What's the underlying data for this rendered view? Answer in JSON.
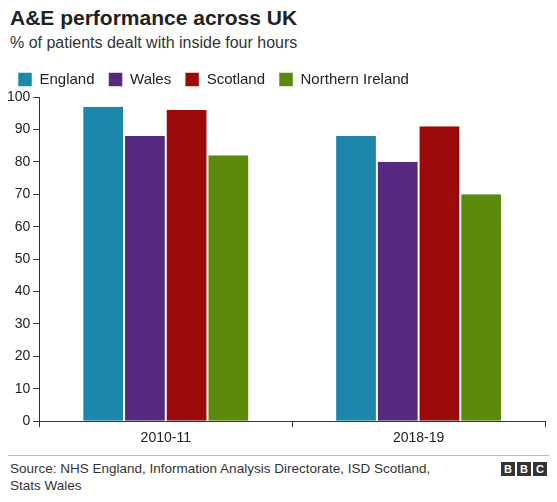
{
  "chart_data": {
    "type": "bar",
    "title": "A&E performance across UK",
    "subtitle": "% of patients dealt with inside four hours",
    "source": "Source: NHS England, Information Analysis Directorate, ISD Scotland, Stats Wales",
    "credit": "BBC",
    "categories": [
      "2010-11",
      "2018-19"
    ],
    "series": [
      {
        "name": "England",
        "color": "#1c87aa",
        "values": [
          97,
          88
        ]
      },
      {
        "name": "Wales",
        "color": "#55297e",
        "values": [
          88,
          80
        ]
      },
      {
        "name": "Scotland",
        "color": "#9b0a0a",
        "values": [
          96,
          91
        ]
      },
      {
        "name": "Northern Ireland",
        "color": "#5b8a0a",
        "values": [
          82,
          70
        ]
      }
    ],
    "ylim": [
      0,
      100
    ],
    "yticks": [
      0,
      10,
      20,
      30,
      40,
      50,
      60,
      70,
      80,
      90,
      100
    ],
    "grid": false,
    "legend": "top left"
  }
}
